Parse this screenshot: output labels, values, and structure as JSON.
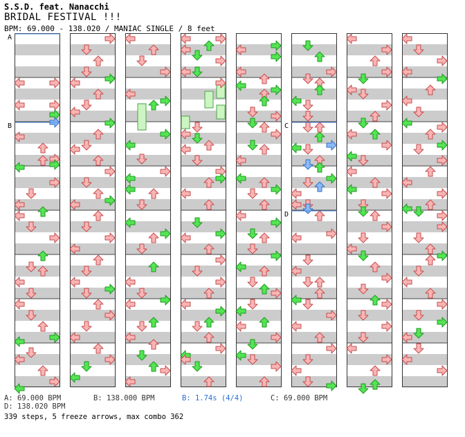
{
  "header": {
    "artist": "S.S.D. feat. Nanacchi",
    "title": "BRIDAL FESTIVAL !!!",
    "info": "BPM: 69.000 - 138.020 / MANIAC SINGLE / 8 feet"
  },
  "markers": {
    "a": "A",
    "b": "B",
    "c": "C",
    "d": "D"
  },
  "legend": {
    "a": "A: 69.000 BPM",
    "b": "B: 138.000 BPM",
    "b_stop": "B: 1.74s (4/4)",
    "c": "C: 69.000 BPM",
    "d": "D: 138.020 BPM"
  },
  "summary": "339 steps, 5 freeze arrows, max combo 362",
  "colors": {
    "red_fill": "#f9b5b5",
    "red_stroke": "#c64c4c",
    "green_fill": "#54e454",
    "green_stroke": "#1c9a1c",
    "blue_fill": "#8cbaf6",
    "blue_stroke": "#2e6fc9",
    "freeze_fill": "#ccf5c2",
    "freeze_stroke": "#4ca04c",
    "band": "#cccccc",
    "bpm_line": "#4a84d8"
  }
}
